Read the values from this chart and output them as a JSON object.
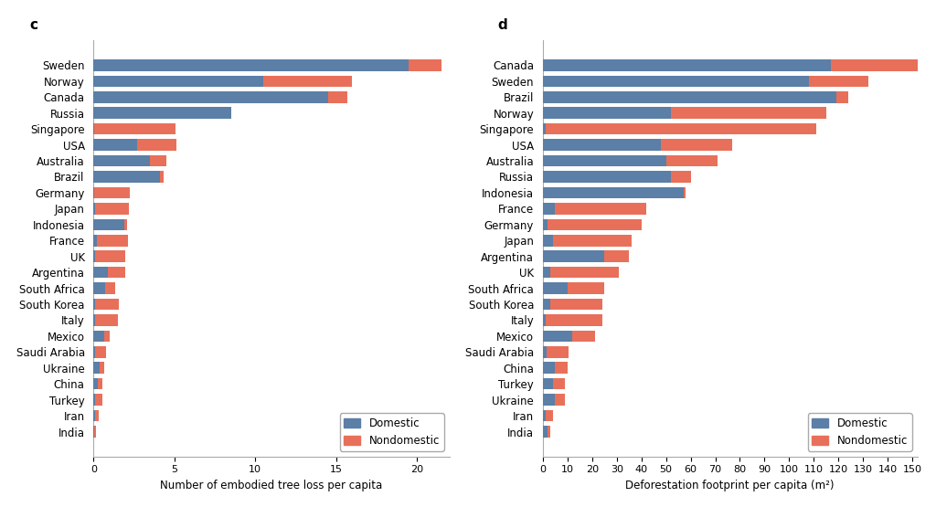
{
  "chart_c": {
    "title": "c",
    "countries": [
      "Sweden",
      "Norway",
      "Canada",
      "Russia",
      "Singapore",
      "USA",
      "Australia",
      "Brazil",
      "Germany",
      "Japan",
      "Indonesia",
      "France",
      "UK",
      "Argentina",
      "South Africa",
      "South Korea",
      "Italy",
      "Mexico",
      "Saudi Arabia",
      "Ukraine",
      "China",
      "Turkey",
      "Iran",
      "India"
    ],
    "domestic": [
      19.5,
      10.5,
      14.5,
      8.5,
      0.05,
      2.7,
      3.5,
      4.1,
      0.05,
      0.1,
      1.9,
      0.2,
      0.1,
      0.9,
      0.7,
      0.08,
      0.08,
      0.65,
      0.08,
      0.35,
      0.25,
      0.08,
      0.08,
      0.05
    ],
    "nondomestic": [
      2.0,
      5.5,
      1.2,
      0.0,
      5.0,
      2.4,
      1.0,
      0.25,
      2.2,
      2.1,
      0.15,
      1.9,
      1.85,
      1.05,
      0.65,
      1.5,
      1.45,
      0.35,
      0.7,
      0.28,
      0.28,
      0.45,
      0.22,
      0.1
    ],
    "xlabel": "Number of embodied tree loss per capita",
    "xlim": [
      0,
      22
    ],
    "xticks": [
      0,
      5,
      10,
      15,
      20
    ]
  },
  "chart_d": {
    "title": "d",
    "countries": [
      "Canada",
      "Sweden",
      "Brazil",
      "Norway",
      "Singapore",
      "USA",
      "Australia",
      "Russia",
      "Indonesia",
      "France",
      "Germany",
      "Japan",
      "Argentina",
      "UK",
      "South Africa",
      "South Korea",
      "Italy",
      "Mexico",
      "Saudi Arabia",
      "China",
      "Turkey",
      "Ukraine",
      "Iran",
      "India"
    ],
    "domestic": [
      117.0,
      108.0,
      119.0,
      52.0,
      1.0,
      48.0,
      50.0,
      52.0,
      57.0,
      5.0,
      2.0,
      4.0,
      25.0,
      3.0,
      10.0,
      3.0,
      1.0,
      12.0,
      1.5,
      5.0,
      4.0,
      5.0,
      1.0,
      2.0
    ],
    "nondomestic": [
      35.0,
      24.0,
      5.0,
      63.0,
      110.0,
      29.0,
      21.0,
      8.0,
      1.0,
      37.0,
      38.0,
      32.0,
      10.0,
      28.0,
      15.0,
      21.0,
      23.0,
      9.0,
      9.0,
      5.0,
      5.0,
      4.0,
      3.0,
      1.0
    ],
    "xlabel": "Deforestation footprint per capita (m²)",
    "xlim": [
      0,
      152
    ],
    "xticks": [
      0,
      10,
      20,
      30,
      40,
      50,
      60,
      70,
      80,
      90,
      100,
      110,
      120,
      130,
      140,
      150
    ]
  },
  "domestic_color": "#5b7fa6",
  "nondomestic_color": "#e8705a",
  "background_color": "#ffffff",
  "bar_height": 0.72,
  "title_fontsize": 11,
  "label_fontsize": 8.5,
  "tick_fontsize": 8,
  "ylabel_fontsize": 8.5
}
